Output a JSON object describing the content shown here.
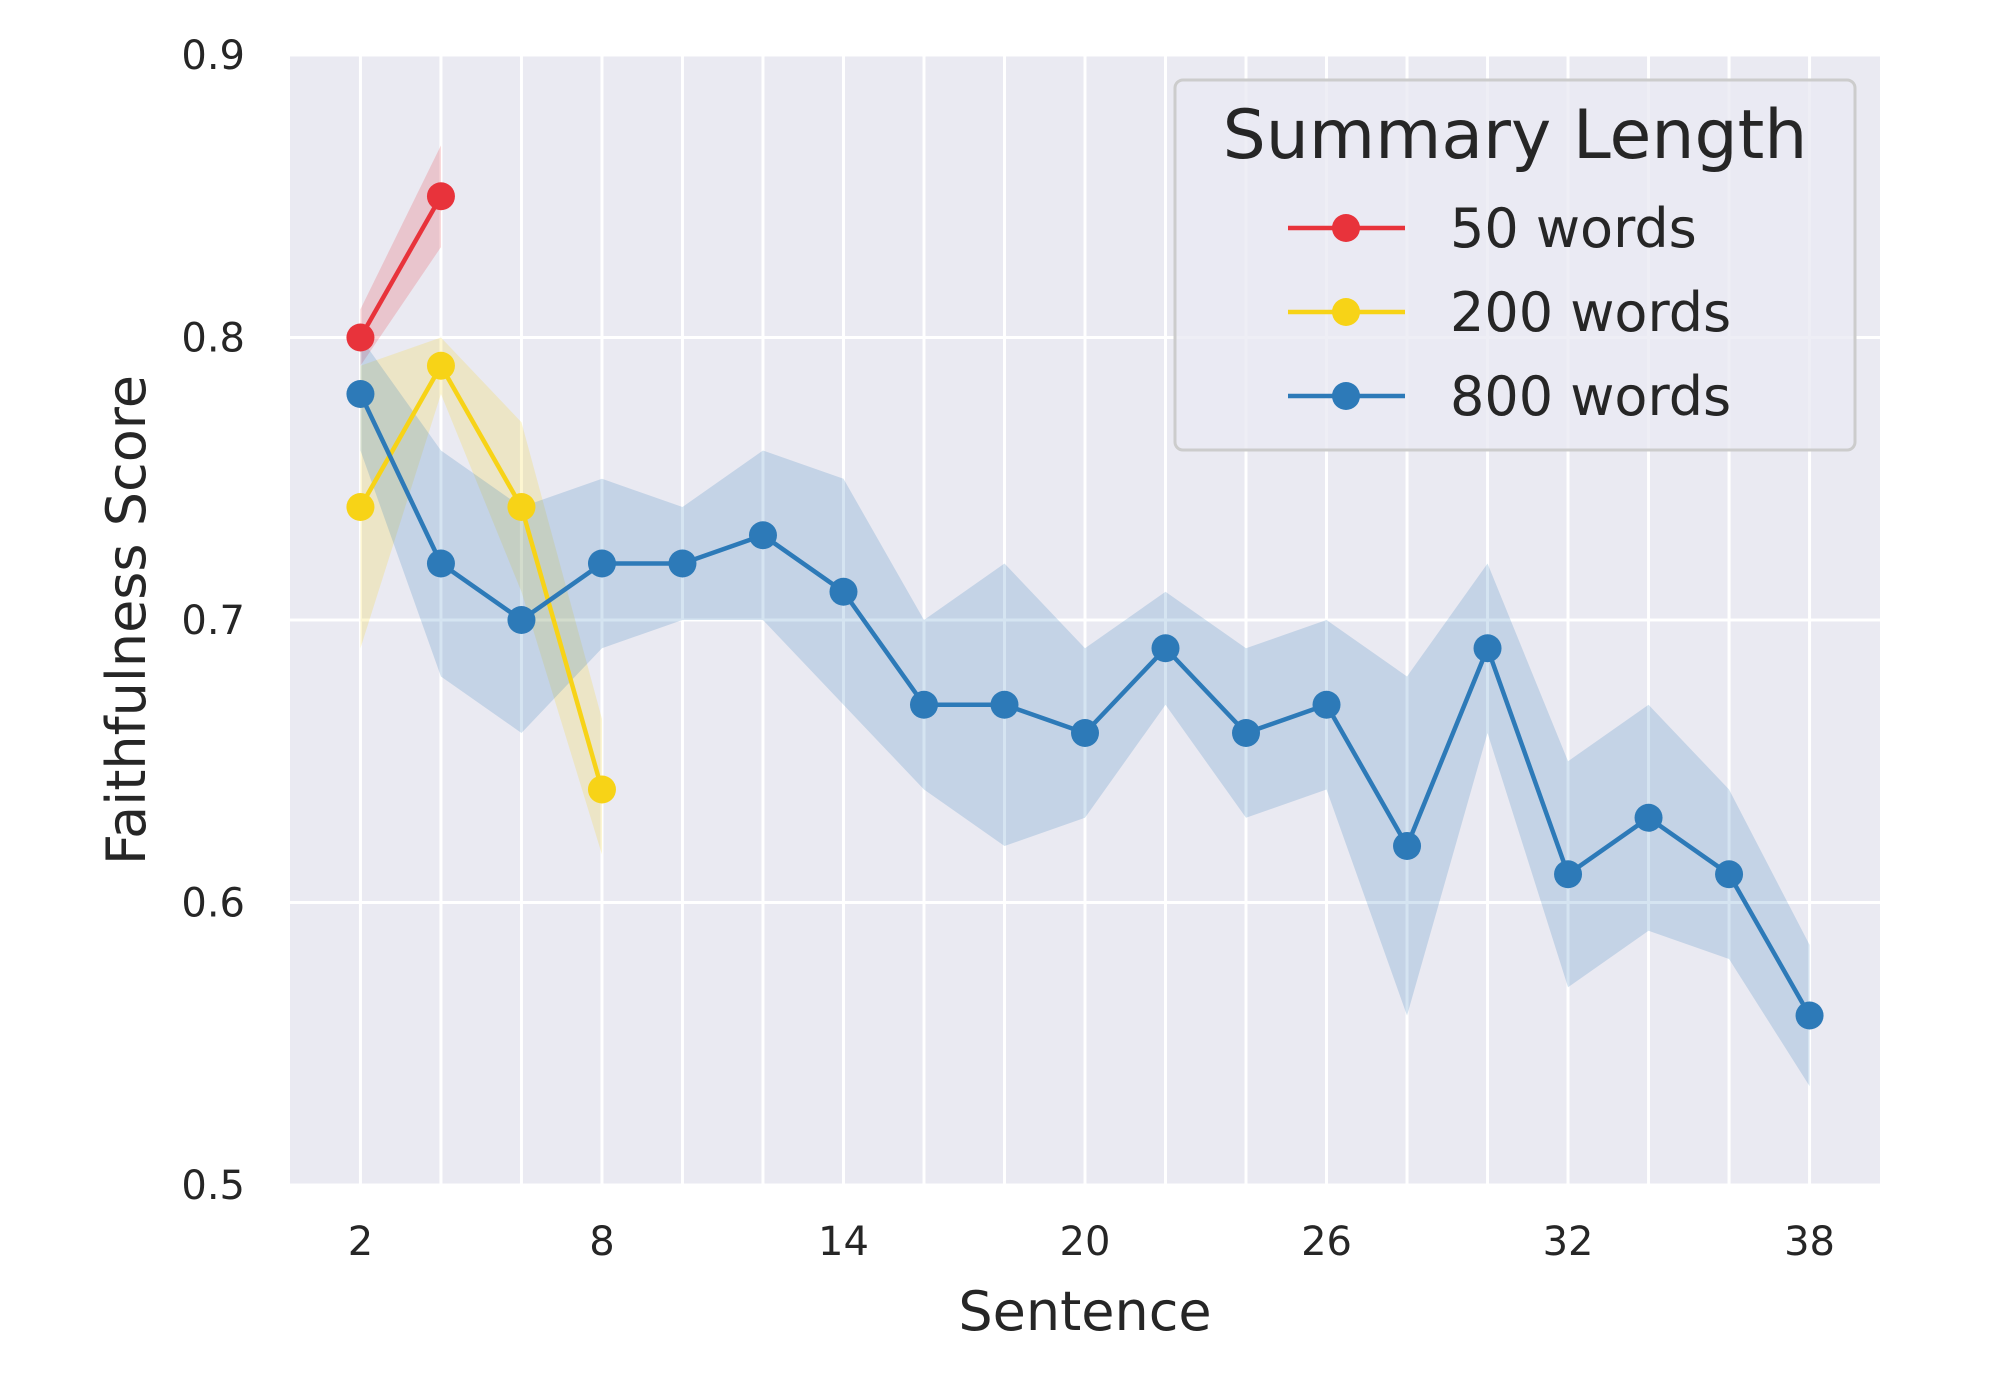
{
  "chart_data": {
    "type": "line",
    "xlabel": "Sentence",
    "ylabel": "Faithfulness Score",
    "xlim": [
      0.25,
      39.75
    ],
    "ylim": [
      0.5,
      0.9
    ],
    "xticks": [
      2,
      8,
      14,
      20,
      26,
      32,
      38
    ],
    "yticks": [
      0.5,
      0.6,
      0.7,
      0.8,
      0.9
    ],
    "x_gridlines": [
      2,
      4,
      6,
      8,
      10,
      12,
      14,
      16,
      18,
      20,
      22,
      24,
      26,
      28,
      30,
      32,
      34,
      36,
      38
    ],
    "grid": true,
    "background": "#eaeaf2",
    "legend": {
      "title": "Summary Length",
      "placement": "top-right"
    },
    "series": [
      {
        "name": "50 words",
        "color": "#e8333b",
        "x": [
          2,
          4
        ],
        "values": [
          0.8,
          0.85
        ],
        "lower": [
          0.79,
          0.832
        ],
        "upper": [
          0.81,
          0.868
        ]
      },
      {
        "name": "200 words",
        "color": "#f7d317",
        "x": [
          2,
          4,
          6,
          8
        ],
        "values": [
          0.74,
          0.79,
          0.74,
          0.64
        ],
        "lower": [
          0.69,
          0.78,
          0.71,
          0.617
        ],
        "upper": [
          0.79,
          0.8,
          0.77,
          0.665
        ]
      },
      {
        "name": "800 words",
        "color": "#2d7ab8",
        "x": [
          2,
          4,
          6,
          8,
          10,
          12,
          14,
          16,
          18,
          20,
          22,
          24,
          26,
          28,
          30,
          32,
          34,
          36,
          38
        ],
        "values": [
          0.78,
          0.72,
          0.7,
          0.72,
          0.72,
          0.73,
          0.71,
          0.67,
          0.67,
          0.66,
          0.69,
          0.66,
          0.67,
          0.62,
          0.69,
          0.61,
          0.63,
          0.61,
          0.56
        ],
        "lower": [
          0.76,
          0.68,
          0.66,
          0.69,
          0.7,
          0.7,
          0.67,
          0.64,
          0.62,
          0.63,
          0.67,
          0.63,
          0.64,
          0.56,
          0.66,
          0.57,
          0.59,
          0.58,
          0.535
        ],
        "upper": [
          0.8,
          0.76,
          0.74,
          0.75,
          0.74,
          0.76,
          0.75,
          0.7,
          0.72,
          0.69,
          0.71,
          0.69,
          0.7,
          0.68,
          0.72,
          0.65,
          0.67,
          0.64,
          0.585
        ]
      }
    ]
  }
}
